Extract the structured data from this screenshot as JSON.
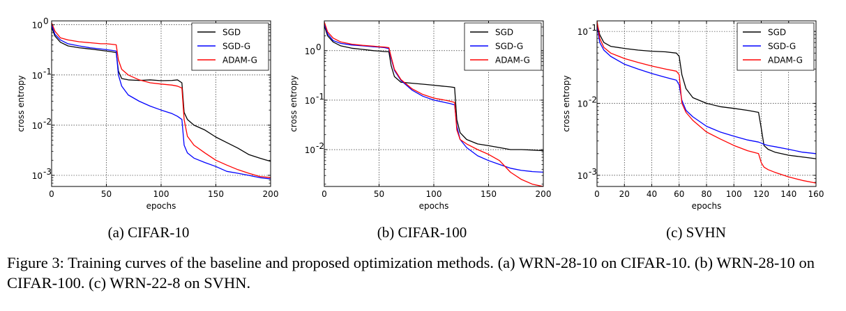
{
  "figure": {
    "caption": "Figure 3: Training curves of the baseline and proposed optimization methods. (a) WRN-28-10 on CIFAR-10. (b) WRN-28-10 on CIFAR-100. (c) WRN-22-8 on SVHN."
  },
  "chart_data": [
    {
      "type": "line",
      "subcaption": "(a) CIFAR-10",
      "xlabel": "epochs",
      "ylabel": "cross entropy",
      "yscale": "log",
      "xlim": [
        0,
        200
      ],
      "ylim": [
        0.0006,
        1.2
      ],
      "xticks": [
        0,
        50,
        100,
        150,
        200
      ],
      "xtick_labels": [
        "0",
        "50",
        "100",
        "150",
        "200"
      ],
      "yticks": [
        0.001,
        0.01,
        0.1,
        1
      ],
      "ytick_labels": [
        "10",
        "10",
        "10",
        "10"
      ],
      "ytick_exponents": [
        "-3",
        "-2",
        "-1",
        "0"
      ],
      "grid": true,
      "legend_position": "top-right",
      "series": [
        {
          "name": "SGD",
          "color": "#000000",
          "x": [
            0,
            3,
            8,
            15,
            25,
            35,
            45,
            50,
            55,
            59,
            61,
            64,
            70,
            80,
            90,
            100,
            110,
            115,
            119,
            121,
            124,
            130,
            140,
            150,
            160,
            170,
            180,
            190,
            200
          ],
          "y": [
            0.9,
            0.6,
            0.45,
            0.38,
            0.35,
            0.33,
            0.31,
            0.3,
            0.29,
            0.28,
            0.12,
            0.085,
            0.08,
            0.078,
            0.08,
            0.077,
            0.078,
            0.08,
            0.07,
            0.018,
            0.013,
            0.01,
            0.008,
            0.0058,
            0.0045,
            0.0035,
            0.0026,
            0.0022,
            0.0019
          ]
        },
        {
          "name": "SGD-G",
          "color": "#0000ff",
          "x": [
            0,
            3,
            8,
            15,
            25,
            35,
            45,
            50,
            55,
            59,
            61,
            64,
            70,
            80,
            90,
            100,
            110,
            115,
            119,
            121,
            124,
            130,
            140,
            150,
            160,
            170,
            180,
            190,
            200
          ],
          "y": [
            1.0,
            0.65,
            0.5,
            0.42,
            0.38,
            0.35,
            0.33,
            0.32,
            0.31,
            0.3,
            0.1,
            0.06,
            0.04,
            0.03,
            0.024,
            0.02,
            0.017,
            0.015,
            0.013,
            0.004,
            0.0028,
            0.0022,
            0.0018,
            0.0015,
            0.0012,
            0.0011,
            0.001,
            0.0009,
            0.00085
          ]
        },
        {
          "name": "ADAM-G",
          "color": "#ff0000",
          "x": [
            0,
            3,
            8,
            15,
            25,
            35,
            45,
            50,
            55,
            59,
            61,
            64,
            70,
            80,
            90,
            100,
            110,
            115,
            119,
            121,
            124,
            130,
            140,
            150,
            160,
            170,
            180,
            190,
            200
          ],
          "y": [
            1.1,
            0.75,
            0.55,
            0.5,
            0.46,
            0.44,
            0.42,
            0.42,
            0.41,
            0.4,
            0.2,
            0.13,
            0.1,
            0.08,
            0.07,
            0.066,
            0.063,
            0.06,
            0.055,
            0.013,
            0.006,
            0.004,
            0.0028,
            0.002,
            0.0016,
            0.0013,
            0.0011,
            0.00095,
            0.0009
          ]
        }
      ]
    },
    {
      "type": "line",
      "subcaption": "(b) CIFAR-100",
      "xlabel": "epochs",
      "ylabel": "cross entropy",
      "yscale": "log",
      "xlim": [
        0,
        200
      ],
      "ylim": [
        0.0018,
        4.0
      ],
      "xticks": [
        0,
        50,
        100,
        150,
        200
      ],
      "xtick_labels": [
        "0",
        "50",
        "100",
        "150",
        "200"
      ],
      "yticks": [
        0.01,
        0.1,
        1
      ],
      "ytick_labels": [
        "10",
        "10",
        "10"
      ],
      "ytick_exponents": [
        "-2",
        "-1",
        "0"
      ],
      "grid": true,
      "legend_position": "top-right",
      "series": [
        {
          "name": "SGD",
          "color": "#000000",
          "x": [
            0,
            3,
            8,
            15,
            25,
            35,
            45,
            50,
            55,
            59,
            61,
            64,
            70,
            80,
            90,
            100,
            110,
            115,
            119,
            121,
            124,
            130,
            140,
            150,
            160,
            170,
            180,
            190,
            200
          ],
          "y": [
            3.2,
            2.0,
            1.5,
            1.25,
            1.12,
            1.06,
            1.0,
            0.98,
            0.96,
            0.95,
            0.5,
            0.3,
            0.23,
            0.22,
            0.21,
            0.2,
            0.19,
            0.185,
            0.18,
            0.04,
            0.022,
            0.016,
            0.013,
            0.012,
            0.011,
            0.01,
            0.01,
            0.0098,
            0.0095
          ]
        },
        {
          "name": "SGD-G",
          "color": "#0000ff",
          "x": [
            0,
            3,
            8,
            15,
            25,
            35,
            45,
            50,
            55,
            59,
            61,
            64,
            70,
            80,
            90,
            100,
            110,
            115,
            119,
            121,
            124,
            130,
            140,
            150,
            160,
            170,
            180,
            190,
            200
          ],
          "y": [
            3.5,
            2.2,
            1.6,
            1.4,
            1.3,
            1.25,
            1.2,
            1.18,
            1.15,
            1.1,
            0.7,
            0.4,
            0.25,
            0.16,
            0.12,
            0.1,
            0.09,
            0.085,
            0.08,
            0.03,
            0.016,
            0.011,
            0.0075,
            0.006,
            0.005,
            0.0042,
            0.0038,
            0.0036,
            0.0035
          ]
        },
        {
          "name": "ADAM-G",
          "color": "#ff0000",
          "x": [
            0,
            3,
            8,
            15,
            25,
            35,
            45,
            50,
            55,
            59,
            61,
            64,
            70,
            80,
            90,
            100,
            110,
            115,
            119,
            121,
            124,
            130,
            140,
            150,
            160,
            170,
            180,
            190,
            200
          ],
          "y": [
            3.8,
            2.4,
            1.8,
            1.5,
            1.35,
            1.28,
            1.23,
            1.2,
            1.18,
            1.15,
            0.75,
            0.42,
            0.26,
            0.17,
            0.13,
            0.11,
            0.1,
            0.095,
            0.09,
            0.025,
            0.016,
            0.013,
            0.01,
            0.008,
            0.006,
            0.0035,
            0.0025,
            0.002,
            0.0018
          ]
        }
      ]
    },
    {
      "type": "line",
      "subcaption": "(c) SVHN",
      "xlabel": "epochs",
      "ylabel": "cross entropy",
      "yscale": "log",
      "xlim": [
        0,
        160
      ],
      "ylim": [
        0.0007,
        0.14
      ],
      "xticks": [
        0,
        20,
        40,
        60,
        80,
        100,
        120,
        140,
        160
      ],
      "xtick_labels": [
        "0",
        "20",
        "40",
        "60",
        "80",
        "100",
        "120",
        "140",
        "160"
      ],
      "yticks": [
        0.001,
        0.01,
        0.1
      ],
      "ytick_labels": [
        "10",
        "10",
        "10"
      ],
      "ytick_exponents": [
        "-3",
        "-2",
        "-1"
      ],
      "grid": true,
      "legend_position": "top-right",
      "series": [
        {
          "name": "SGD",
          "color": "#000000",
          "x": [
            0,
            2,
            5,
            10,
            20,
            30,
            40,
            50,
            58,
            60,
            62,
            65,
            70,
            80,
            90,
            100,
            110,
            118,
            120,
            122,
            125,
            130,
            140,
            150,
            160
          ],
          "y": [
            0.13,
            0.09,
            0.07,
            0.062,
            0.058,
            0.055,
            0.053,
            0.052,
            0.05,
            0.045,
            0.025,
            0.016,
            0.012,
            0.01,
            0.009,
            0.0085,
            0.008,
            0.0075,
            0.0045,
            0.0026,
            0.0023,
            0.0021,
            0.0019,
            0.0018,
            0.0017
          ]
        },
        {
          "name": "SGD-G",
          "color": "#0000ff",
          "x": [
            0,
            2,
            5,
            10,
            20,
            30,
            40,
            50,
            58,
            60,
            62,
            65,
            70,
            80,
            90,
            100,
            110,
            118,
            120,
            122,
            125,
            130,
            140,
            150,
            160
          ],
          "y": [
            0.12,
            0.07,
            0.055,
            0.045,
            0.035,
            0.03,
            0.026,
            0.023,
            0.021,
            0.018,
            0.011,
            0.008,
            0.0065,
            0.0048,
            0.004,
            0.0035,
            0.0031,
            0.0029,
            0.0028,
            0.0027,
            0.0026,
            0.0025,
            0.0023,
            0.0021,
            0.002
          ]
        },
        {
          "name": "ADAM-G",
          "color": "#ff0000",
          "x": [
            0,
            2,
            5,
            10,
            20,
            30,
            40,
            50,
            58,
            60,
            62,
            65,
            70,
            80,
            90,
            100,
            110,
            118,
            120,
            122,
            125,
            130,
            140,
            150,
            160
          ],
          "y": [
            0.14,
            0.08,
            0.06,
            0.05,
            0.042,
            0.037,
            0.033,
            0.03,
            0.028,
            0.025,
            0.01,
            0.0075,
            0.0058,
            0.004,
            0.0032,
            0.0026,
            0.0022,
            0.002,
            0.0015,
            0.0013,
            0.0012,
            0.0011,
            0.00095,
            0.00085,
            0.00078
          ]
        }
      ]
    }
  ]
}
